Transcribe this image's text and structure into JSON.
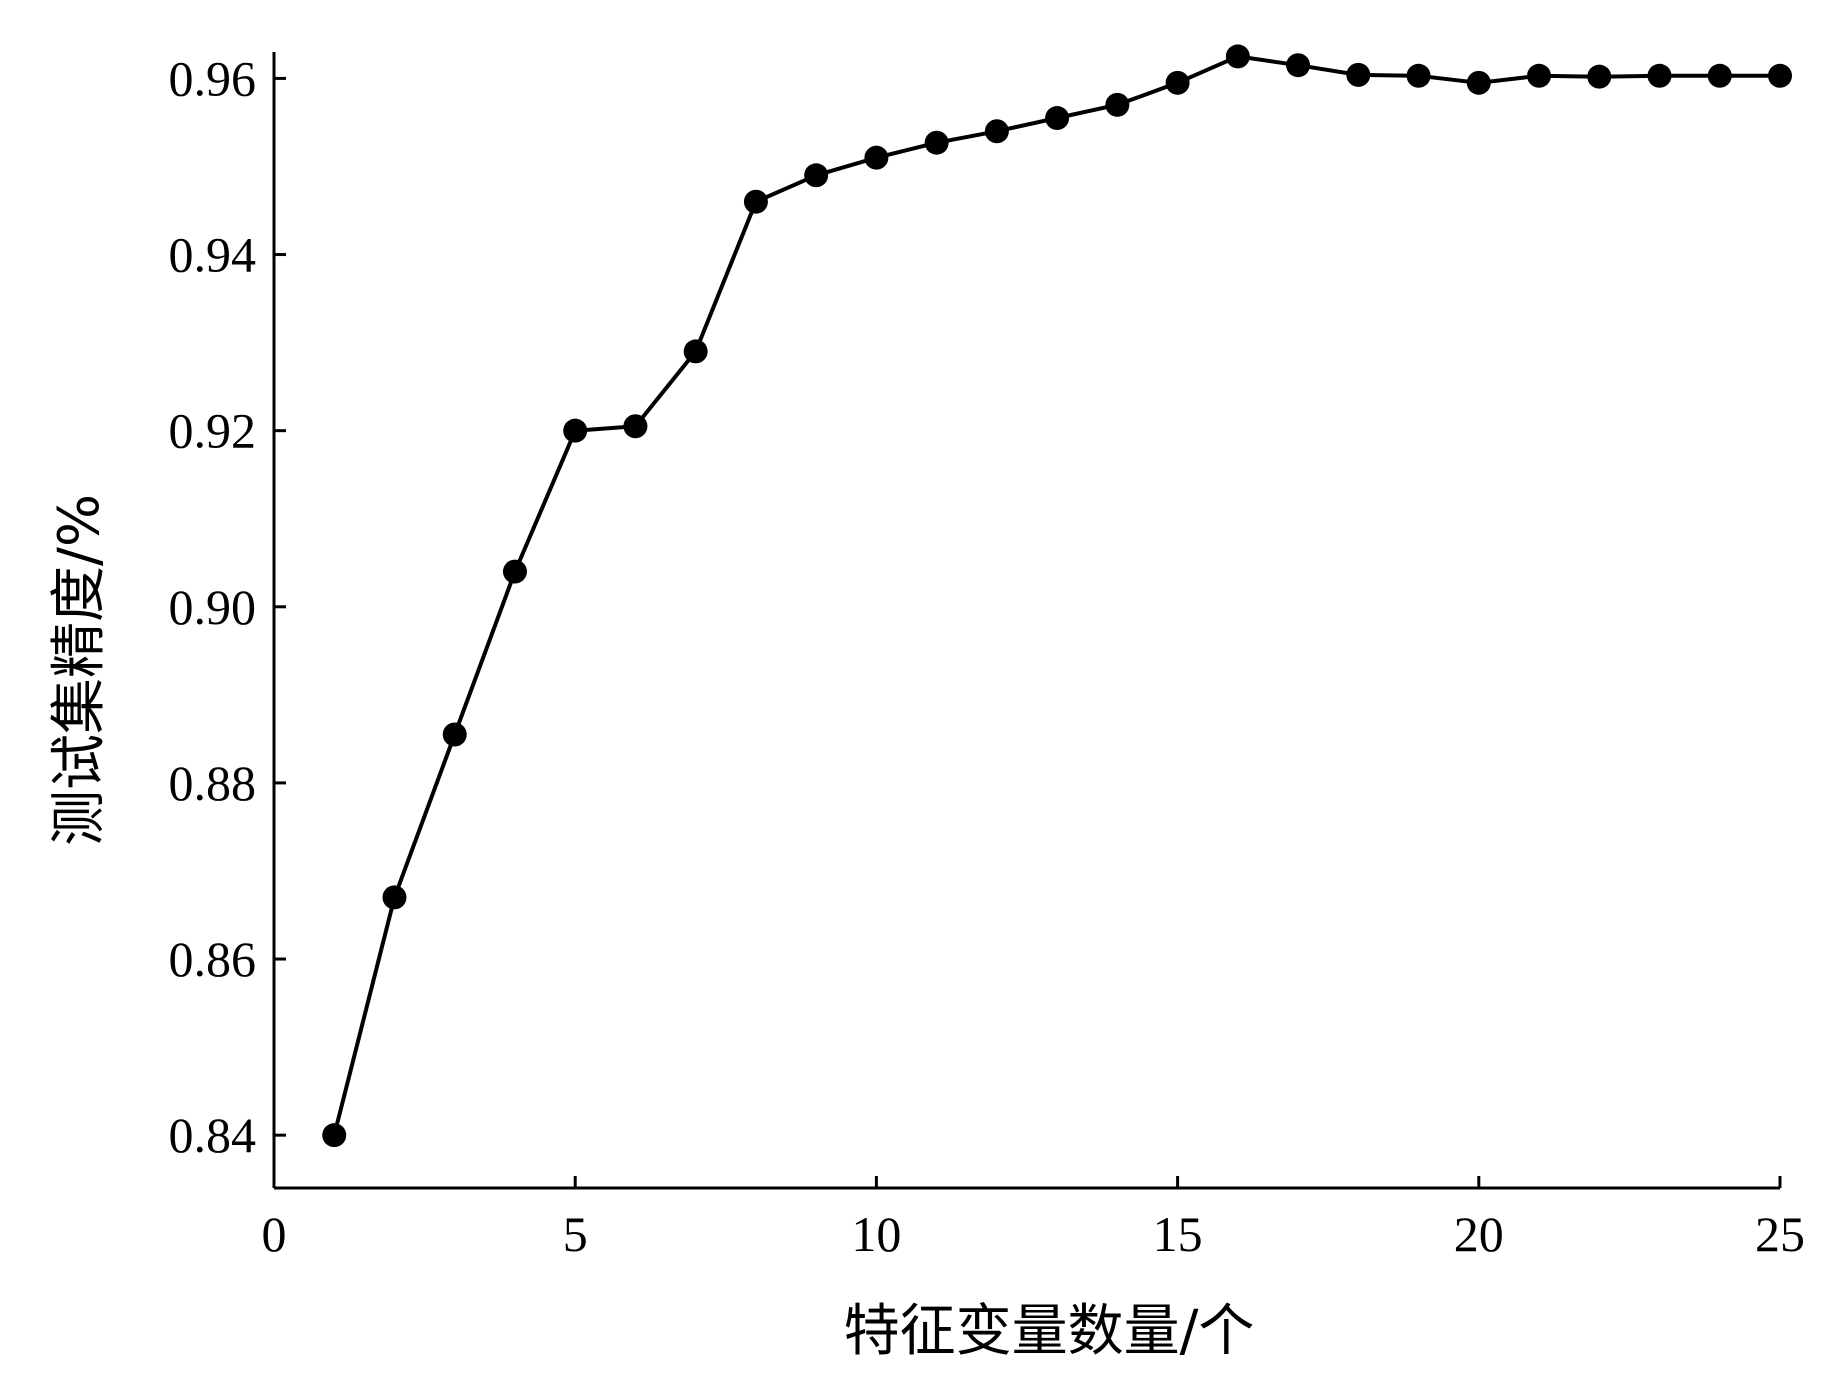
{
  "chart_data": {
    "type": "line",
    "title": "",
    "xlabel": "特征变量数量/个",
    "ylabel": "测试集精度/%",
    "xlim": [
      0,
      25
    ],
    "ylim": [
      0.834,
      0.963
    ],
    "xticks": [
      0,
      5,
      10,
      15,
      20,
      25
    ],
    "xtick_labels": [
      "0",
      "5",
      "10",
      "15",
      "20",
      "25"
    ],
    "yticks": [
      0.84,
      0.86,
      0.88,
      0.9,
      0.92,
      0.94,
      0.96
    ],
    "ytick_labels": [
      "0.84",
      "0.86",
      "0.88",
      "0.90",
      "0.92",
      "0.94",
      "0.96"
    ],
    "grid": false,
    "legend": "none",
    "series": [
      {
        "color": "#000000",
        "marker": "circle",
        "x": [
          1,
          2,
          3,
          4,
          5,
          6,
          7,
          8,
          9,
          10,
          11,
          12,
          13,
          14,
          15,
          16,
          17,
          18,
          19,
          20,
          21,
          22,
          23,
          24,
          25
        ],
        "y": [
          0.84,
          0.867,
          0.8855,
          0.904,
          0.92,
          0.9205,
          0.929,
          0.946,
          0.949,
          0.951,
          0.9527,
          0.954,
          0.9555,
          0.957,
          0.9595,
          0.9625,
          0.9615,
          0.9604,
          0.9603,
          0.9595,
          0.9603,
          0.9602,
          0.9603,
          0.9603,
          0.9603
        ]
      }
    ]
  }
}
